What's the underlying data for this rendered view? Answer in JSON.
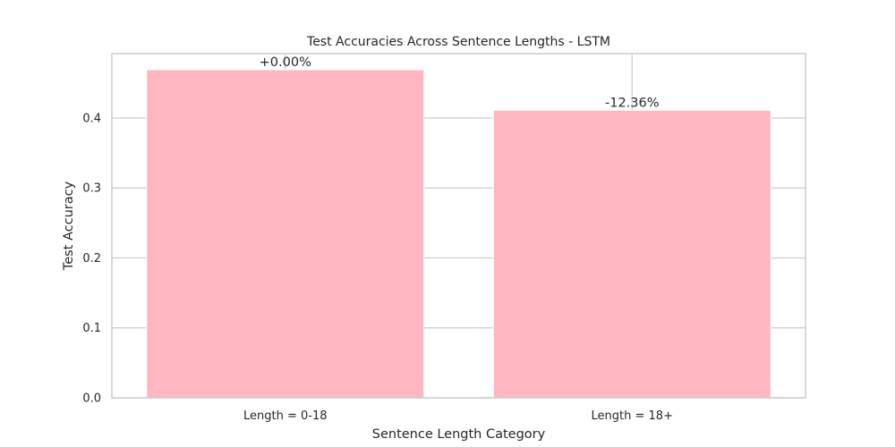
{
  "chart_data": {
    "type": "bar",
    "title": "Test Accuracies Across Sentence Lengths - LSTM",
    "xlabel": "Sentence Length Category",
    "ylabel": "Test Accuracy",
    "categories": [
      "Length = 0-18",
      "Length = 18+"
    ],
    "values": [
      0.469,
      0.411
    ],
    "data_labels": [
      "+0.00%",
      "-12.36%"
    ],
    "ylim": [
      0,
      0.492
    ],
    "yticks": [
      0.0,
      0.1,
      0.2,
      0.3,
      0.4
    ],
    "ytick_labels": [
      "0.0",
      "0.1",
      "0.2",
      "0.3",
      "0.4"
    ],
    "grid": true,
    "bar_color": "#ffb6c1",
    "grid_color": "#cccccc",
    "frame_color": "#cccccc",
    "text_color": "#262626"
  }
}
